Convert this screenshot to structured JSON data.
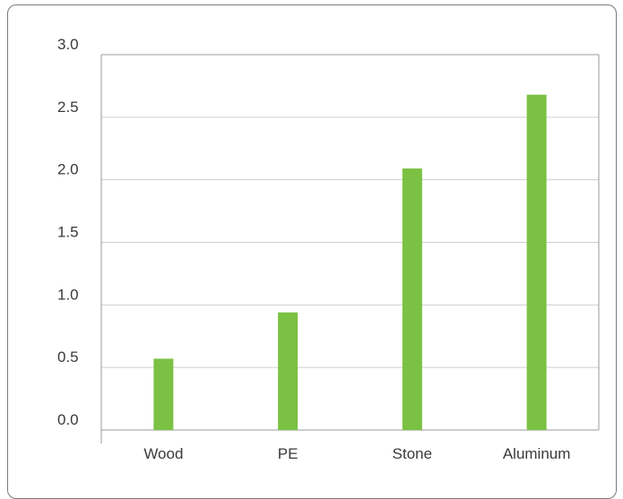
{
  "chart_data": {
    "type": "bar",
    "title": "",
    "xlabel": "",
    "ylabel": "",
    "categories": [
      "Wood",
      "PE",
      "Stone",
      "Aluminum"
    ],
    "values": [
      0.57,
      0.94,
      2.09,
      2.68
    ],
    "ylim": [
      0,
      3.0
    ],
    "yticks": [
      "0.0",
      "0.5",
      "1.0",
      "1.5",
      "2.0",
      "2.5",
      "3.0"
    ],
    "grid": true,
    "legend": "none",
    "colors": {
      "bar": "#7bc143",
      "grid": "#cfcfcf",
      "axis": "#9a9a9a",
      "text": "#3a3a3a"
    }
  }
}
